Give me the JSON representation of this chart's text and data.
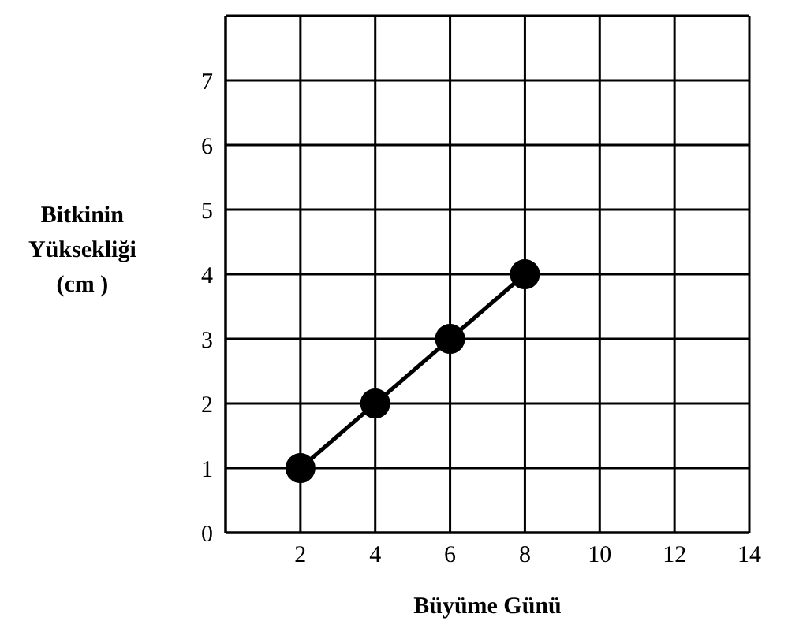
{
  "chart_data": {
    "type": "line",
    "xlabel": "Büyüme Günü",
    "ylabel": "Bitkinin\nYüksekliği\n(cm )",
    "x": [
      2,
      4,
      6,
      8
    ],
    "series": [
      {
        "color": "#000000",
        "values": [
          1,
          2,
          3,
          4
        ]
      }
    ],
    "xlim": [
      0,
      14
    ],
    "xticks": [
      {
        "value": 0,
        "label": null
      },
      2,
      4,
      6,
      8,
      10,
      12,
      14
    ],
    "ylim": [
      0,
      8
    ],
    "yticks": [
      0,
      1,
      2,
      3,
      4,
      5,
      6,
      7,
      {
        "value": 8,
        "label": null
      }
    ],
    "grid": true,
    "legend": false,
    "marker": "circle",
    "line_style": "solid"
  }
}
